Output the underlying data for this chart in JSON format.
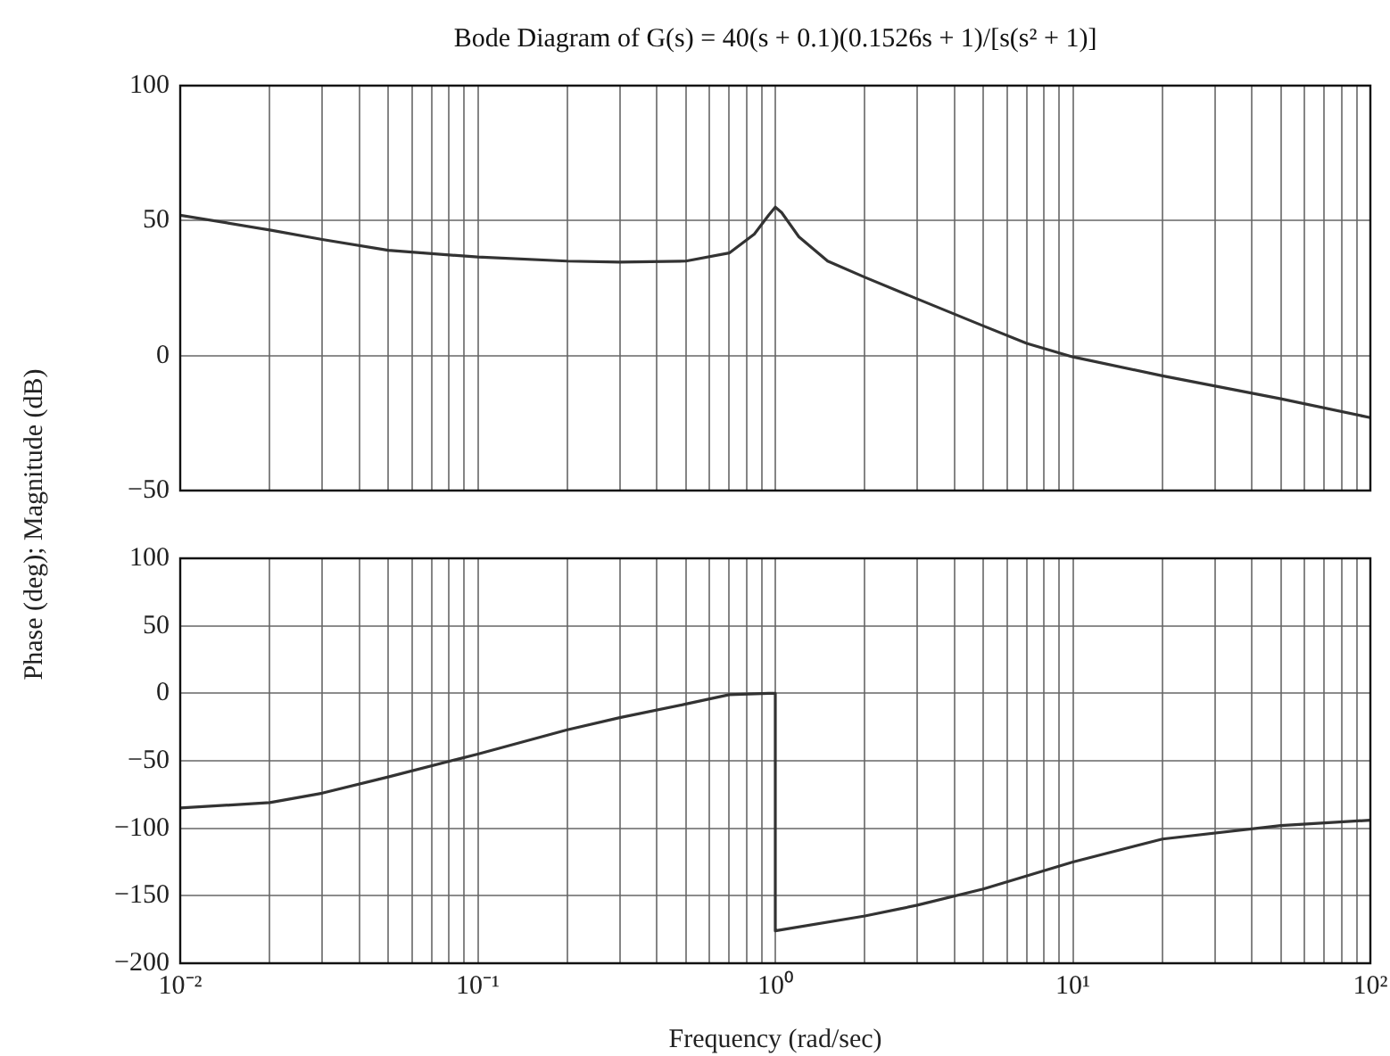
{
  "chart_data": [
    {
      "type": "line",
      "title": "Bode Diagram of G(s) = 40(s + 0.1)(0.1526s + 1)/[s(s² + 1)]",
      "ylabel": "Phase (deg); Magnitude (dB)",
      "log": "x",
      "grid": true,
      "tick_labels": "y",
      "x": [
        0.01,
        0.02,
        0.03,
        0.05,
        0.1,
        0.2,
        0.3,
        0.5,
        0.7,
        0.85,
        0.95,
        1.0,
        1.05,
        1.2,
        1.5,
        2,
        3,
        5,
        7,
        10,
        20,
        50,
        100
      ],
      "series": [
        {
          "color": "#333333",
          "values": [
            52,
            46.5,
            43,
            39,
            36.5,
            35,
            34.6,
            35,
            38,
            45,
            52,
            55,
            53,
            44,
            35,
            29,
            21,
            11,
            4.5,
            -0.5,
            -7.5,
            -16,
            -23
          ]
        }
      ],
      "xlim": [
        0.01,
        100
      ],
      "xticks": [
        {
          "value": 0.01,
          "label": null
        },
        {
          "value": 0.02,
          "label": null
        },
        {
          "value": 0.03,
          "label": null
        },
        {
          "value": 0.04,
          "label": null
        },
        {
          "value": 0.05,
          "label": null
        },
        {
          "value": 0.06,
          "label": null
        },
        {
          "value": 0.07,
          "label": null
        },
        {
          "value": 0.08,
          "label": null
        },
        {
          "value": 0.09,
          "label": null
        },
        {
          "value": 0.1,
          "label": null
        },
        {
          "value": 0.2,
          "label": null
        },
        {
          "value": 0.3,
          "label": null
        },
        {
          "value": 0.4,
          "label": null
        },
        {
          "value": 0.5,
          "label": null
        },
        {
          "value": 0.6,
          "label": null
        },
        {
          "value": 0.7,
          "label": null
        },
        {
          "value": 0.8,
          "label": null
        },
        {
          "value": 0.9,
          "label": null
        },
        {
          "value": 1,
          "label": null
        },
        {
          "value": 2,
          "label": null
        },
        {
          "value": 3,
          "label": null
        },
        {
          "value": 4,
          "label": null
        },
        {
          "value": 5,
          "label": null
        },
        {
          "value": 6,
          "label": null
        },
        {
          "value": 7,
          "label": null
        },
        {
          "value": 8,
          "label": null
        },
        {
          "value": 9,
          "label": null
        },
        {
          "value": 10,
          "label": null
        },
        {
          "value": 20,
          "label": null
        },
        {
          "value": 30,
          "label": null
        },
        {
          "value": 40,
          "label": null
        },
        {
          "value": 50,
          "label": null
        },
        {
          "value": 60,
          "label": null
        },
        {
          "value": 70,
          "label": null
        },
        {
          "value": 80,
          "label": null
        },
        {
          "value": 90,
          "label": null
        },
        {
          "value": 100,
          "label": null
        }
      ],
      "ylim": [
        -50,
        100
      ],
      "yticks": [
        -50,
        0,
        50,
        100
      ]
    },
    {
      "type": "line",
      "xlabel": "Frequency (rad/sec)",
      "log": "x",
      "grid": true,
      "x": [
        0.01,
        0.02,
        0.03,
        0.05,
        0.1,
        0.2,
        0.3,
        0.5,
        0.7,
        0.95,
        1.0,
        1.0,
        2,
        3,
        5,
        10,
        20,
        50,
        100
      ],
      "series": [
        {
          "color": "#333333",
          "values": [
            -85,
            -81,
            -74,
            -62,
            -45,
            -27,
            -18,
            -8,
            -1,
            0,
            0,
            -176,
            -165,
            -157,
            -145,
            -125,
            -108,
            -98,
            -94
          ]
        }
      ],
      "xlim": [
        0.01,
        100
      ],
      "xticks": [
        {
          "value": 0.01,
          "label": "10⁻²"
        },
        {
          "value": 0.02,
          "label": null
        },
        {
          "value": 0.03,
          "label": null
        },
        {
          "value": 0.04,
          "label": null
        },
        {
          "value": 0.05,
          "label": null
        },
        {
          "value": 0.06,
          "label": null
        },
        {
          "value": 0.07,
          "label": null
        },
        {
          "value": 0.08,
          "label": null
        },
        {
          "value": 0.09,
          "label": null
        },
        {
          "value": 0.1,
          "label": "10⁻¹"
        },
        {
          "value": 0.2,
          "label": null
        },
        {
          "value": 0.3,
          "label": null
        },
        {
          "value": 0.4,
          "label": null
        },
        {
          "value": 0.5,
          "label": null
        },
        {
          "value": 0.6,
          "label": null
        },
        {
          "value": 0.7,
          "label": null
        },
        {
          "value": 0.8,
          "label": null
        },
        {
          "value": 0.9,
          "label": null
        },
        {
          "value": 1,
          "label": "10⁰"
        },
        {
          "value": 2,
          "label": null
        },
        {
          "value": 3,
          "label": null
        },
        {
          "value": 4,
          "label": null
        },
        {
          "value": 5,
          "label": null
        },
        {
          "value": 6,
          "label": null
        },
        {
          "value": 7,
          "label": null
        },
        {
          "value": 8,
          "label": null
        },
        {
          "value": 9,
          "label": null
        },
        {
          "value": 10,
          "label": "10¹"
        },
        {
          "value": 20,
          "label": null
        },
        {
          "value": 30,
          "label": null
        },
        {
          "value": 40,
          "label": null
        },
        {
          "value": 50,
          "label": null
        },
        {
          "value": 60,
          "label": null
        },
        {
          "value": 70,
          "label": null
        },
        {
          "value": 80,
          "label": null
        },
        {
          "value": 90,
          "label": null
        },
        {
          "value": 100,
          "label": "10²"
        }
      ],
      "ylim": [
        -200,
        100
      ],
      "yticks": [
        -200,
        -150,
        -100,
        -50,
        0,
        50,
        100
      ]
    }
  ]
}
